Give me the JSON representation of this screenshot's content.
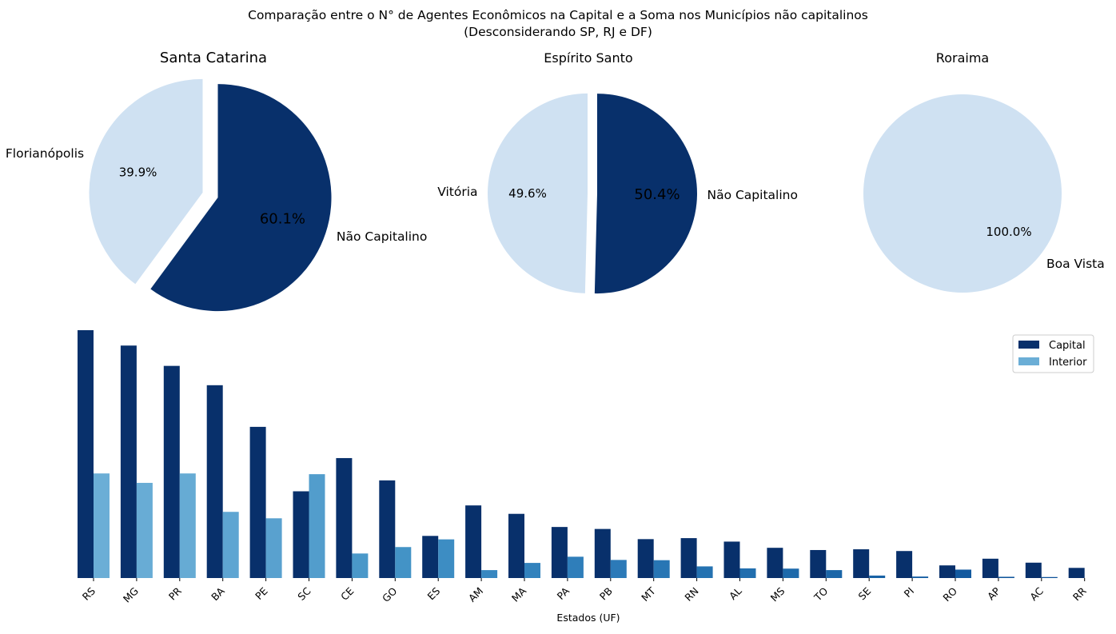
{
  "figure": {
    "title_line1": "Comparação entre o N° de Agentes Econômicos na Capital e a Soma nos Municípios não capitalinos",
    "title_line2": "(Desconsiderando SP, RJ e DF)"
  },
  "colors": {
    "capital_dark": "#08306b",
    "interior_light": "#cfe1f2",
    "legend_capital": "#08306b",
    "legend_interior": "#6baed6"
  },
  "chart_data": [
    {
      "type": "pie",
      "title": "Santa Catarina",
      "slices": [
        {
          "label": "Florianópolis",
          "value": 39.9,
          "pct_label": "39.9%",
          "color": "#cfe1f2"
        },
        {
          "label": "Não Capitalino",
          "value": 60.1,
          "pct_label": "60.1%",
          "color": "#08306b"
        }
      ]
    },
    {
      "type": "pie",
      "title": "Espírito Santo",
      "slices": [
        {
          "label": "Vitória",
          "value": 49.6,
          "pct_label": "49.6%",
          "color": "#cfe1f2"
        },
        {
          "label": "Não Capitalino",
          "value": 50.4,
          "pct_label": "50.4%",
          "color": "#08306b"
        }
      ]
    },
    {
      "type": "pie",
      "title": "Roraima",
      "slices": [
        {
          "label": "Boa Vista",
          "value": 100.0,
          "pct_label": "100.0%",
          "color": "#cfe1f2"
        }
      ]
    },
    {
      "type": "bar",
      "xlabel": "Estados (UF)",
      "ylabel": "",
      "categories": [
        "RS",
        "MG",
        "PR",
        "BA",
        "PE",
        "SC",
        "CE",
        "GO",
        "ES",
        "AM",
        "MA",
        "PA",
        "PB",
        "MT",
        "RN",
        "AL",
        "MS",
        "TO",
        "SE",
        "PI",
        "RO",
        "AP",
        "AC",
        "RR"
      ],
      "series": [
        {
          "name": "Capital",
          "values": [
            100.0,
            93.8,
            85.6,
            77.8,
            61.0,
            35.0,
            48.4,
            39.4,
            17.0,
            29.3,
            25.9,
            20.6,
            19.8,
            15.7,
            16.1,
            14.7,
            12.2,
            11.3,
            11.6,
            10.9,
            5.1,
            7.8,
            6.2,
            4.1
          ]
        },
        {
          "name": "Interior",
          "values": [
            42.2,
            38.4,
            42.2,
            26.7,
            24.1,
            41.9,
            9.9,
            12.5,
            15.6,
            3.2,
            6.1,
            8.6,
            7.3,
            7.2,
            4.7,
            3.9,
            3.8,
            3.2,
            1.0,
            0.6,
            3.4,
            0.5,
            0.4,
            0.0
          ]
        }
      ],
      "ylim": [
        0,
        100
      ],
      "grid": false,
      "legend_position": "top-right"
    }
  ]
}
